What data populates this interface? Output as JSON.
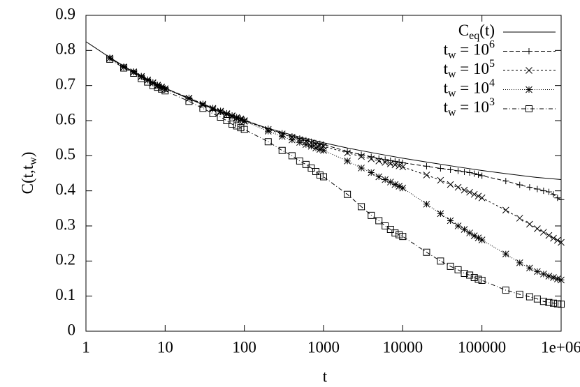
{
  "chart_data": {
    "type": "line",
    "x_label": "t",
    "y_label": "C(t,t_{w})",
    "x_scale": "log",
    "xlim": [
      1,
      1000000
    ],
    "xticks": [
      1,
      10,
      100,
      1000,
      10000,
      100000,
      {
        "value": 1000000,
        "label": "1e+06"
      }
    ],
    "ylim": [
      0,
      0.9
    ],
    "yticks": [
      0,
      0.1,
      0.2,
      0.3,
      0.4,
      0.5,
      0.6,
      0.7,
      0.8,
      0.9
    ],
    "grid": false,
    "legend": "top-right",
    "series": [
      {
        "name": "C_{eq}(t)",
        "color": "#000000",
        "dash": "none",
        "marker": "none",
        "x": [
          1,
          2,
          5,
          10,
          20,
          50,
          100,
          200,
          500,
          1000,
          2000,
          5000,
          10000,
          20000,
          50000,
          100000,
          200000,
          500000,
          1000000
        ],
        "values": [
          0.825,
          0.78,
          0.725,
          0.693,
          0.662,
          0.625,
          0.6,
          0.578,
          0.553,
          0.537,
          0.522,
          0.505,
          0.493,
          0.482,
          0.468,
          0.458,
          0.449,
          0.438,
          0.432
        ]
      },
      {
        "name": "t_{w} = 10^{6}",
        "color": "#000000",
        "dash": "6,3",
        "marker": "plus",
        "x": [
          2,
          3,
          4,
          5,
          6,
          7,
          8,
          9,
          10,
          20,
          30,
          40,
          50,
          60,
          70,
          80,
          90,
          100,
          200,
          300,
          400,
          500,
          600,
          700,
          800,
          900,
          1000,
          2000,
          3000,
          4000,
          5000,
          6000,
          7000,
          8000,
          9000,
          10000,
          20000,
          30000,
          40000,
          50000,
          60000,
          70000,
          80000,
          90000,
          100000,
          200000,
          300000,
          400000,
          500000,
          600000,
          700000,
          800000,
          900000,
          1000000
        ],
        "values": [
          0.779,
          0.754,
          0.74,
          0.727,
          0.717,
          0.709,
          0.702,
          0.697,
          0.692,
          0.665,
          0.648,
          0.636,
          0.628,
          0.621,
          0.615,
          0.61,
          0.606,
          0.602,
          0.577,
          0.564,
          0.555,
          0.549,
          0.544,
          0.54,
          0.536,
          0.534,
          0.532,
          0.512,
          0.503,
          0.497,
          0.492,
          0.489,
          0.486,
          0.484,
          0.482,
          0.48,
          0.47,
          0.464,
          0.46,
          0.457,
          0.454,
          0.452,
          0.449,
          0.446,
          0.443,
          0.428,
          0.417,
          0.41,
          0.405,
          0.4,
          0.397,
          0.39,
          0.38,
          0.375
        ]
      },
      {
        "name": "t_{w} = 10^{5}",
        "color": "#000000",
        "dash": "3,3",
        "marker": "cross",
        "x": [
          2,
          3,
          4,
          5,
          6,
          7,
          8,
          9,
          10,
          20,
          30,
          40,
          50,
          60,
          70,
          80,
          90,
          100,
          200,
          300,
          400,
          500,
          600,
          700,
          800,
          900,
          1000,
          2000,
          3000,
          4000,
          5000,
          6000,
          7000,
          8000,
          9000,
          10000,
          20000,
          30000,
          40000,
          50000,
          60000,
          70000,
          80000,
          90000,
          100000,
          200000,
          300000,
          400000,
          500000,
          600000,
          700000,
          800000,
          900000,
          1000000
        ],
        "values": [
          0.778,
          0.753,
          0.739,
          0.726,
          0.716,
          0.708,
          0.701,
          0.696,
          0.691,
          0.664,
          0.647,
          0.635,
          0.627,
          0.62,
          0.614,
          0.609,
          0.605,
          0.6,
          0.575,
          0.562,
          0.553,
          0.546,
          0.541,
          0.537,
          0.533,
          0.53,
          0.527,
          0.508,
          0.498,
          0.491,
          0.485,
          0.481,
          0.477,
          0.474,
          0.471,
          0.468,
          0.445,
          0.43,
          0.418,
          0.41,
          0.402,
          0.396,
          0.39,
          0.385,
          0.38,
          0.345,
          0.322,
          0.305,
          0.292,
          0.282,
          0.273,
          0.265,
          0.259,
          0.253
        ]
      },
      {
        "name": "t_{w} = 10^{4}",
        "color": "#000000",
        "dash": "1,2",
        "marker": "star",
        "x": [
          2,
          3,
          4,
          5,
          6,
          7,
          8,
          9,
          10,
          20,
          30,
          40,
          50,
          60,
          70,
          80,
          90,
          100,
          200,
          300,
          400,
          500,
          600,
          700,
          800,
          900,
          1000,
          2000,
          3000,
          4000,
          5000,
          6000,
          7000,
          8000,
          9000,
          10000,
          20000,
          30000,
          40000,
          50000,
          60000,
          70000,
          80000,
          90000,
          100000,
          200000,
          300000,
          400000,
          500000,
          600000,
          700000,
          800000,
          900000,
          1000000
        ],
        "values": [
          0.778,
          0.752,
          0.738,
          0.725,
          0.715,
          0.707,
          0.7,
          0.695,
          0.69,
          0.663,
          0.645,
          0.633,
          0.625,
          0.618,
          0.612,
          0.606,
          0.602,
          0.598,
          0.57,
          0.555,
          0.545,
          0.538,
          0.532,
          0.527,
          0.522,
          0.518,
          0.515,
          0.485,
          0.465,
          0.452,
          0.44,
          0.432,
          0.425,
          0.418,
          0.413,
          0.408,
          0.362,
          0.335,
          0.315,
          0.3,
          0.29,
          0.28,
          0.272,
          0.266,
          0.26,
          0.22,
          0.195,
          0.18,
          0.17,
          0.163,
          0.157,
          0.153,
          0.149,
          0.146
        ]
      },
      {
        "name": "t_{w} = 10^{3}",
        "color": "#000000",
        "dash": "6,3,1,3",
        "marker": "square",
        "x": [
          2,
          3,
          4,
          5,
          6,
          7,
          8,
          9,
          10,
          20,
          30,
          40,
          50,
          60,
          70,
          80,
          90,
          100,
          200,
          300,
          400,
          500,
          600,
          700,
          800,
          900,
          1000,
          2000,
          3000,
          4000,
          5000,
          6000,
          7000,
          8000,
          9000,
          10000,
          20000,
          30000,
          40000,
          50000,
          60000,
          70000,
          80000,
          90000,
          100000,
          200000,
          300000,
          400000,
          500000,
          600000,
          700000,
          800000,
          900000,
          1000000
        ],
        "values": [
          0.775,
          0.75,
          0.735,
          0.72,
          0.71,
          0.7,
          0.695,
          0.69,
          0.685,
          0.655,
          0.635,
          0.62,
          0.61,
          0.6,
          0.59,
          0.585,
          0.58,
          0.575,
          0.54,
          0.515,
          0.5,
          0.485,
          0.475,
          0.465,
          0.455,
          0.445,
          0.44,
          0.39,
          0.355,
          0.33,
          0.315,
          0.3,
          0.29,
          0.28,
          0.275,
          0.27,
          0.225,
          0.2,
          0.185,
          0.175,
          0.165,
          0.16,
          0.153,
          0.148,
          0.145,
          0.117,
          0.105,
          0.098,
          0.092,
          0.085,
          0.082,
          0.08,
          0.078,
          0.077
        ]
      }
    ]
  }
}
